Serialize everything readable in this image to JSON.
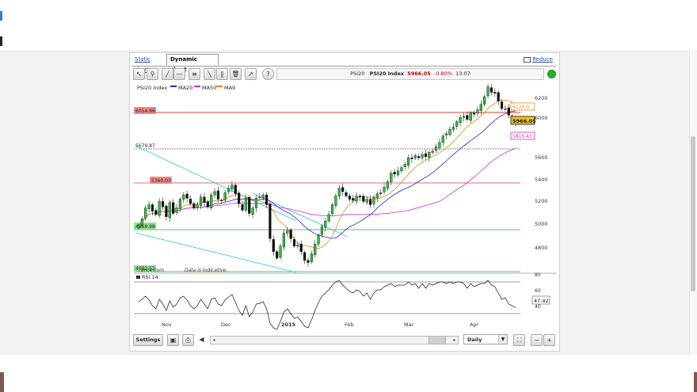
{
  "tabs": {
    "static": "Static chart",
    "dynamic": "Dynamic chart",
    "reduce": "Reduce"
  },
  "toolbar": {
    "tools": [
      "pointer-icon",
      "zoom-icon",
      "trendline-icon",
      "horizontal-line-icon",
      "fibonacci-icon",
      "channel-icon",
      "parallel-icon",
      "delete-icon",
      "indicator-icon",
      "help-icon"
    ],
    "quote": {
      "code": "PSI20",
      "name": "PSI20 Index",
      "price": "5966.05",
      "change": "-0.80%",
      "time": "13:07"
    }
  },
  "legend": {
    "title": "PSI20 Index",
    "items": [
      {
        "label": "MA20",
        "color": "#1f2ccc"
      },
      {
        "label": "MA50",
        "color": "#d22bd2"
      },
      {
        "label": "MA9",
        "color": "#e08a10"
      }
    ]
  },
  "price_labels": {
    "current": "5966.05",
    "ma9": "6120.0",
    "ma50": "5815.43",
    "resistance": "6054.86",
    "support1": "5679.87",
    "level2": "5360.03",
    "level3": "4958.98",
    "level4": "4682.52"
  },
  "watermark": "...ance.com",
  "disclaimer": "Data is Indicative.",
  "rsi": {
    "label": "RSI 14",
    "value": "47.42"
  },
  "bottombar": {
    "settings": "Settings",
    "period": "Daily"
  },
  "chart_data": {
    "type": "candlestick",
    "title": "PSI20 Index",
    "y_ticks": [
      "6200",
      "6000",
      "5600",
      "5400",
      "5200",
      "5000",
      "4800"
    ],
    "x_ticks": [
      "Nov",
      "Dec",
      "2015",
      "Feb",
      "Mar",
      "Apr"
    ],
    "rsi_ticks": [
      "80",
      "60",
      "40"
    ],
    "series": [
      {
        "name": "PSI20 Index",
        "close": [
          5020,
          5080,
          5180,
          5210,
          5150,
          5120,
          5240,
          5190,
          5100,
          5230,
          5130,
          5180,
          5260,
          5300,
          5270,
          5220,
          5180,
          5210,
          5280,
          5230,
          5190,
          5300,
          5330,
          5260,
          5250,
          5320,
          5360,
          5390,
          5310,
          5220,
          5160,
          5270,
          5130,
          5180,
          5270,
          5280,
          5300,
          5210,
          4900,
          4780,
          4720,
          4830,
          4950,
          4970,
          4900,
          4830,
          4840,
          4780,
          4700,
          4680,
          4760,
          4850,
          4930,
          5010,
          5060,
          5120,
          5210,
          5290,
          5360,
          5330,
          5290,
          5260,
          5250,
          5290,
          5280,
          5240,
          5260,
          5210,
          5280,
          5310,
          5320,
          5370,
          5420,
          5500,
          5490,
          5520,
          5550,
          5580,
          5640,
          5630,
          5660,
          5640,
          5670,
          5650,
          5690,
          5700,
          5740,
          5780,
          5840,
          5860,
          5900,
          5920,
          5970,
          6010,
          6020,
          5990,
          6050,
          6040,
          6080,
          6130,
          6200,
          6290,
          6240,
          6230,
          6160,
          6090,
          6090,
          6030,
          6000,
          5966
        ]
      },
      {
        "name": "MA20"
      },
      {
        "name": "MA50"
      },
      {
        "name": "MA9"
      },
      {
        "name": "RSI 14",
        "values": [
          55,
          58,
          62,
          57,
          50,
          46,
          58,
          52,
          44,
          56,
          48,
          52,
          60,
          62,
          57,
          50,
          46,
          50,
          58,
          52,
          46,
          58,
          60,
          52,
          50,
          57,
          61,
          64,
          54,
          44,
          38,
          50,
          36,
          42,
          52,
          53,
          55,
          46,
          28,
          22,
          20,
          30,
          42,
          46,
          40,
          34,
          36,
          30,
          24,
          22,
          32,
          44,
          54,
          62,
          66,
          70,
          76,
          80,
          82,
          76,
          72,
          68,
          66,
          70,
          68,
          62,
          66,
          58,
          66,
          70,
          70,
          74,
          76,
          78,
          74,
          76,
          76,
          76,
          80,
          76,
          78,
          72,
          78,
          72,
          78,
          76,
          78,
          80,
          80,
          78,
          80,
          78,
          80,
          80,
          78,
          72,
          78,
          74,
          76,
          78,
          78,
          82,
          76,
          74,
          66,
          58,
          60,
          52,
          50,
          47.42
        ]
      }
    ]
  }
}
